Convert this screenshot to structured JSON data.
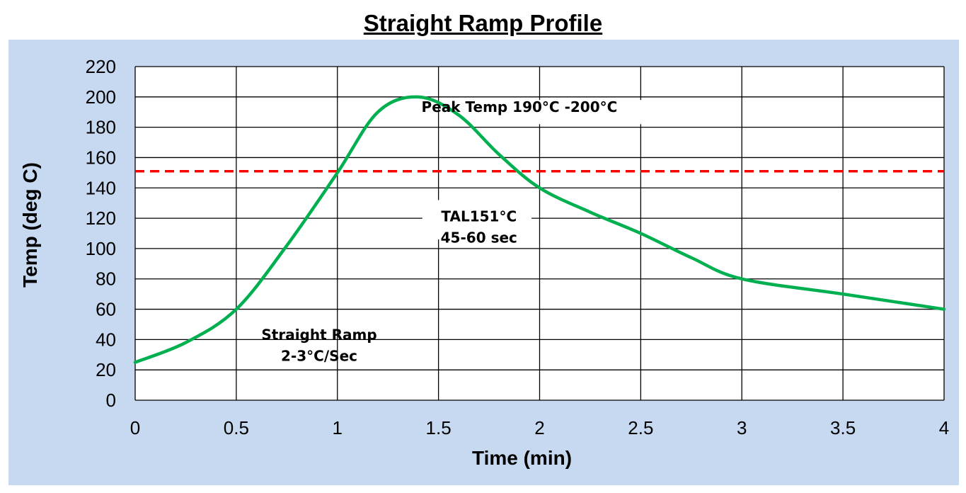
{
  "chart_data": {
    "type": "line",
    "title": "Straight Ramp Profile",
    "xlabel": "Time (min)",
    "ylabel": "Temp (deg C)",
    "xlim": [
      0,
      4
    ],
    "ylim": [
      0,
      220
    ],
    "xticks": [
      0,
      0.5,
      1,
      1.5,
      2,
      2.5,
      3,
      3.5,
      4
    ],
    "yticks": [
      0,
      20,
      40,
      60,
      80,
      100,
      120,
      140,
      160,
      180,
      200,
      220
    ],
    "xtick_labels": [
      "0",
      "0.5",
      "1",
      "1.5",
      "2",
      "2.5",
      "3",
      "3.5",
      "4"
    ],
    "ytick_labels": [
      "0",
      "20",
      "40",
      "60",
      "80",
      "100",
      "120",
      "140",
      "160",
      "180",
      "200",
      "220"
    ],
    "grid": true,
    "series": [
      {
        "color": "#00b050",
        "x": [
          0,
          0.25,
          0.5,
          0.75,
          1,
          1.2,
          1.4,
          1.6,
          1.8,
          2,
          2.25,
          2.5,
          2.75,
          3,
          3.5,
          4
        ],
        "y": [
          25,
          38,
          60,
          102,
          150,
          190,
          200,
          188,
          162,
          140,
          124,
          110,
          94,
          80,
          70,
          60
        ]
      }
    ],
    "reference_lines": [
      {
        "y": 151,
        "color": "#ff0000",
        "style": "dashed"
      }
    ],
    "annotations": [
      {
        "lines": [
          "Peak Temp 190°C -200°C"
        ],
        "x": 1.9,
        "y": 190
      },
      {
        "lines": [
          "TAL151°C",
          "45-60 sec"
        ],
        "x": 1.7,
        "y": 118
      },
      {
        "lines": [
          "Straight Ramp",
          "2-3°C/Sec"
        ],
        "x": 0.91,
        "y": 40
      }
    ]
  },
  "colors": {
    "panel_background": "#c6d9f0",
    "plot_background": "#ffffff",
    "grid": "#000000"
  }
}
